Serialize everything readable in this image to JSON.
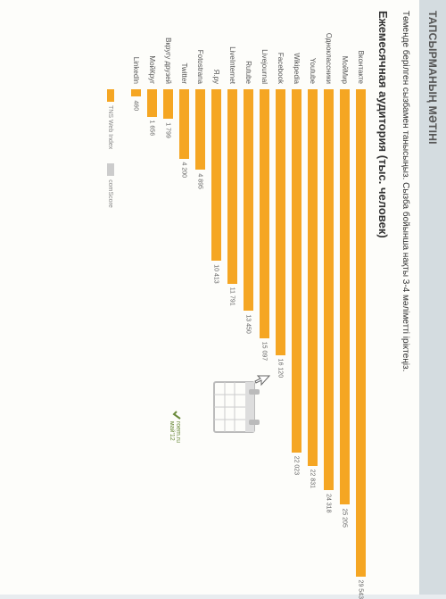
{
  "header": {
    "title": "ТАПСЫРМАНЫҢ МӘТІНІ"
  },
  "instruction": "Төменде берілген сызбамен танысыңыз. Сызба бойынша нақты 3-4 мәліметті іріктеңіз.",
  "chart": {
    "type": "bar",
    "title": "Ежемесячная аудитория (тыс. человек)",
    "bar_color": "#f5a623",
    "max_value": 30000,
    "data": [
      {
        "label": "Вконтакте",
        "value": 29543
      },
      {
        "label": "МойМир",
        "value": 25205
      },
      {
        "label": "Одноклассники",
        "value": 24318
      },
      {
        "label": "Youtube",
        "value": 22831
      },
      {
        "label": "Wikipedia",
        "value": 22023
      },
      {
        "label": "Facebook",
        "value": 16120
      },
      {
        "label": "Livejournal",
        "value": 15097
      },
      {
        "label": "Rutube",
        "value": 13450
      },
      {
        "label": "LiveInternet",
        "value": 11791
      },
      {
        "label": "Я.ру",
        "value": 10413
      },
      {
        "label": "Fotostrana",
        "value": 4895
      },
      {
        "label": "Twitter",
        "value": 4200
      },
      {
        "label": "Вкругу друзей",
        "value": 1799
      },
      {
        "label": "МойКруг",
        "value": 1656
      },
      {
        "label": "LinkedIn",
        "value": 460
      }
    ]
  },
  "legend": {
    "items": [
      {
        "label": "TNS Web Index",
        "color": "#f5a623"
      },
      {
        "label": "comScore",
        "color": "#cccccc"
      }
    ]
  },
  "source": {
    "text": "roem.ru\nмай'12"
  }
}
